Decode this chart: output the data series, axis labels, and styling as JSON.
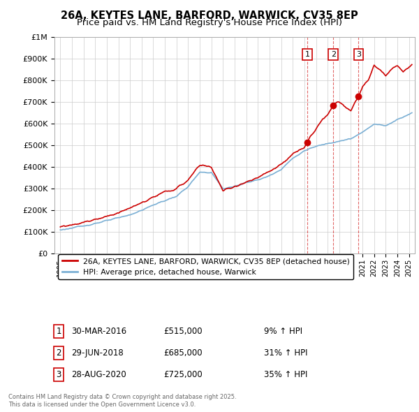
{
  "title": "26A, KEYTES LANE, BARFORD, WARWICK, CV35 8EP",
  "subtitle": "Price paid vs. HM Land Registry's House Price Index (HPI)",
  "ylabel_ticks": [
    "£0",
    "£100K",
    "£200K",
    "£300K",
    "£400K",
    "£500K",
    "£600K",
    "£700K",
    "£800K",
    "£900K",
    "£1M"
  ],
  "ytick_values": [
    0,
    100000,
    200000,
    300000,
    400000,
    500000,
    600000,
    700000,
    800000,
    900000,
    1000000
  ],
  "ylim": [
    0,
    1000000
  ],
  "xlim_start": 1994.5,
  "xlim_end": 2025.5,
  "sale_dates": [
    2016.24,
    2018.49,
    2020.66
  ],
  "sale_prices": [
    515000,
    685000,
    725000
  ],
  "sale_labels": [
    "1",
    "2",
    "3"
  ],
  "sale_annotations": [
    {
      "label": "1",
      "date": "30-MAR-2016",
      "price": "£515,000",
      "pct": "9% ↑ HPI"
    },
    {
      "label": "2",
      "date": "29-JUN-2018",
      "price": "£685,000",
      "pct": "31% ↑ HPI"
    },
    {
      "label": "3",
      "date": "28-AUG-2020",
      "price": "£725,000",
      "pct": "35% ↑ HPI"
    }
  ],
  "red_line_color": "#cc0000",
  "blue_line_color": "#7aafd4",
  "grid_color": "#cccccc",
  "legend_label_red": "26A, KEYTES LANE, BARFORD, WARWICK, CV35 8EP (detached house)",
  "legend_label_blue": "HPI: Average price, detached house, Warwick",
  "footer_line1": "Contains HM Land Registry data © Crown copyright and database right 2025.",
  "footer_line2": "This data is licensed under the Open Government Licence v3.0.",
  "background_color": "#ffffff",
  "title_fontsize": 10.5,
  "subtitle_fontsize": 9.5
}
